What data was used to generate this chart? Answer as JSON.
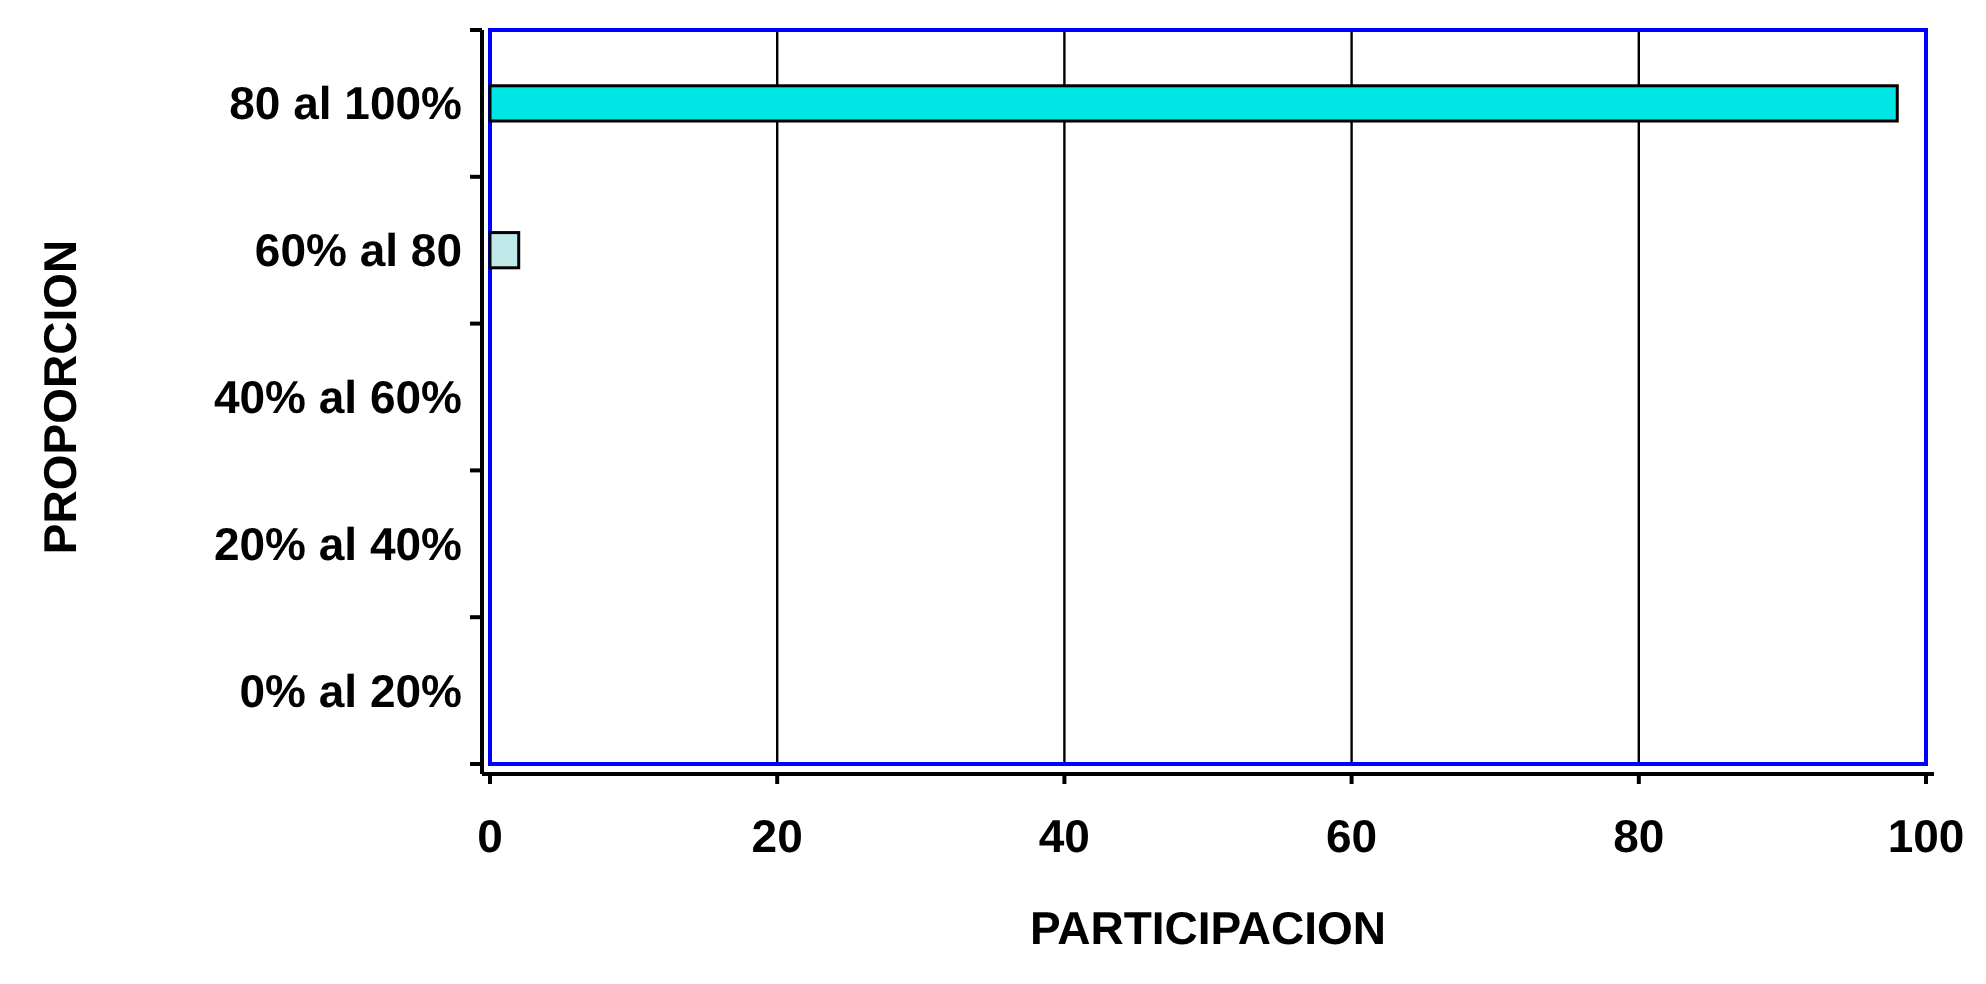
{
  "chart_data": {
    "type": "bar",
    "orientation": "horizontal",
    "xlabel": "PARTICIPACION",
    "ylabel": "PROPORCION",
    "categories": [
      "80 al 100%",
      "60% al 80",
      "40% al 60%",
      "20% al 40%",
      "0% al 20%"
    ],
    "values": [
      98,
      2,
      0,
      0,
      0
    ],
    "colors": [
      "#00e5e5",
      "#bfe8e8",
      "#3a3a6a",
      "#3a3a6a",
      "#3a3a6a"
    ],
    "xlim": [
      0,
      100
    ],
    "xticks": [
      0,
      20,
      40,
      60,
      80,
      100
    ],
    "grid": "x"
  }
}
